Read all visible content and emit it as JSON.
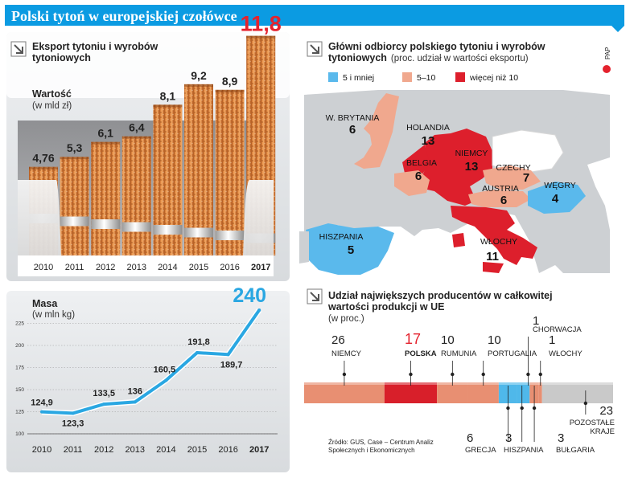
{
  "title": "Polski tytoń w europejskiej czołówce",
  "credit": "PAP",
  "colors": {
    "banner": "#0b9be2",
    "accent_red": "#e4222d",
    "line_blue": "#2aa7e2",
    "map_low": "#5ab9ec",
    "map_mid": "#f0a88e",
    "map_high": "#dd1f2c",
    "map_other": "#cdd0d3"
  },
  "export_section": {
    "title_line1": "Eksport tytoniu i wyrobów",
    "title_line2": "tytoniowych",
    "value_label": "Wartość",
    "value_unit": "(w mld zł)"
  },
  "mass_section": {
    "label": "Masa",
    "unit": "(w mln kg)"
  },
  "map_section": {
    "title_line1": "Główni odbiorcy polskiego tytoniu i wyrobów",
    "title_line2": "tytoniowych",
    "subtitle": "(proc. udział w wartości eksportu)",
    "legend": [
      {
        "label": "5 i mniej",
        "color": "#5ab9ec"
      },
      {
        "label": "5–10",
        "color": "#f0a88e"
      },
      {
        "label": "więcej niż 10",
        "color": "#dd1f2c"
      }
    ],
    "countries": [
      {
        "name": "W. BRYTANIA",
        "value": "6",
        "tier": "mid"
      },
      {
        "name": "HOLANDIA",
        "value": "13",
        "tier": "high"
      },
      {
        "name": "NIEMCY",
        "value": "13",
        "tier": "high"
      },
      {
        "name": "BELGIA",
        "value": "6",
        "tier": "mid"
      },
      {
        "name": "CZECHY",
        "value": "7",
        "tier": "mid"
      },
      {
        "name": "AUSTRIA",
        "value": "6",
        "tier": "mid"
      },
      {
        "name": "WĘGRY",
        "value": "4",
        "tier": "low"
      },
      {
        "name": "HISZPANIA",
        "value": "5",
        "tier": "low"
      },
      {
        "name": "WŁOCHY",
        "value": "11",
        "tier": "high"
      }
    ]
  },
  "producers_section": {
    "title_line1": "Udział największych producentów w całkowitej",
    "title_line2": "wartości produkcji w UE",
    "unit": "(w proc.)",
    "source_line1": "Źródło: GUS, Case – Centrum Analiz",
    "source_line2": "Społecznych i Ekonomicznych"
  },
  "chart_data": [
    {
      "type": "bar",
      "title": "Eksport tytoniu i wyrobów tytoniowych",
      "ylabel": "Wartość (w mld zł)",
      "categories": [
        "2010",
        "2011",
        "2012",
        "2013",
        "2014",
        "2015",
        "2016",
        "2017"
      ],
      "values": [
        4.76,
        5.3,
        6.1,
        6.4,
        8.1,
        9.2,
        8.9,
        11.8
      ],
      "value_labels": [
        "4,76",
        "5,3",
        "6,1",
        "6,4",
        "8,1",
        "9,2",
        "8,9",
        "11,8"
      ],
      "highlight": "2017"
    },
    {
      "type": "line",
      "ylabel": "Masa (w mln kg)",
      "x": [
        "2010",
        "2011",
        "2012",
        "2013",
        "2014",
        "2015",
        "2016",
        "2017"
      ],
      "values": [
        124.9,
        123.3,
        133.5,
        136,
        160.5,
        191.8,
        189.7,
        240
      ],
      "value_labels": [
        "124,9",
        "123,3",
        "133,5",
        "136",
        "160,5",
        "191,8",
        "189,7",
        "240"
      ],
      "yticks": [
        100,
        125,
        150,
        175,
        200,
        225
      ],
      "ylim": [
        100,
        250
      ]
    },
    {
      "type": "bar",
      "title": "Udział największych producentów w całkowitej wartości produkcji w UE",
      "ylabel": "(w proc.)",
      "segments": [
        {
          "name": "Niemcy",
          "value": 26,
          "color": "#e88f72"
        },
        {
          "name": "Polska",
          "value": 17,
          "color": "#d81f2a"
        },
        {
          "name": "Rumunia",
          "value": 10,
          "color": "#e88f72"
        },
        {
          "name": "Portugalia",
          "value": 10,
          "color": "#e88f72"
        },
        {
          "name": "Grecja",
          "value": 6,
          "color": "#4fb8ea"
        },
        {
          "name": "Hiszpania",
          "value": 3,
          "color": "#4fb8ea"
        },
        {
          "name": "Chorwacja",
          "value": 1,
          "color": "#4fb8ea"
        },
        {
          "name": "Bułgaria",
          "value": 3,
          "color": "#e88f72"
        },
        {
          "name": "Włochy",
          "value": 1,
          "color": "#e88f72"
        },
        {
          "name": "Pozostałe kraje",
          "value": 23,
          "color": "#c9c9c9"
        }
      ],
      "ticks_ordered": [
        {
          "value": "26",
          "name": "Niemcy"
        },
        {
          "value": "17",
          "name": "Polska"
        },
        {
          "value": "10",
          "name": "Rumunia"
        },
        {
          "value": "10",
          "name": "Portugalia"
        },
        {
          "value": "1",
          "name": "Chorwacja"
        },
        {
          "value": "1",
          "name": "Włochy"
        },
        {
          "value": "23",
          "name": "Pozostałe",
          "name2": "kraje"
        },
        {
          "value": "6",
          "name": "Grecja"
        },
        {
          "value": "3",
          "name": "Hiszpania"
        },
        {
          "value": "3",
          "name": "Bułgaria"
        }
      ]
    }
  ]
}
